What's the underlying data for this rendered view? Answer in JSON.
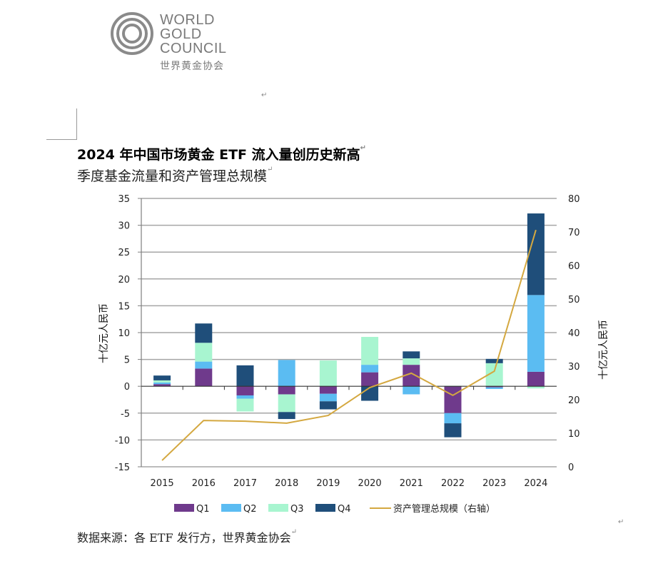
{
  "logo": {
    "lines": [
      "WORLD",
      "GOLD",
      "COUNCIL"
    ],
    "chinese": "世界黄金协会",
    "icon": "concentric-rings-icon"
  },
  "title": "2024 年中国市场黄金 ETF 流入量创历史新高",
  "subtitle": "季度基金流量和资产管理总规模",
  "source": "数据来源：各 ETF 发行方，世界黄金协会",
  "paragraph_mark": "↵",
  "colors": {
    "Q1": "#6f3a8c",
    "Q2": "#5bbcf2",
    "Q3": "#a8f5d0",
    "Q4": "#1f4e7a",
    "aum": "#d4a840",
    "grid": "#a6a6a6",
    "axis": "#7f7f7f"
  },
  "chart_data": {
    "type": "bar",
    "stacked": true,
    "title": "季度基金流量和资产管理总规模",
    "categories": [
      "2015",
      "2016",
      "2017",
      "2018",
      "2019",
      "2020",
      "2021",
      "2022",
      "2023",
      "2024"
    ],
    "series": [
      {
        "name": "Q1",
        "type": "bar",
        "axis": "left",
        "values": [
          0.4,
          3.3,
          -1.7,
          -1.5,
          -1.4,
          2.6,
          4.0,
          -5.0,
          -0.2,
          2.7
        ]
      },
      {
        "name": "Q2",
        "type": "bar",
        "axis": "left",
        "values": [
          0.3,
          1.3,
          -0.6,
          4.9,
          -1.4,
          1.4,
          -1.5,
          -1.9,
          -0.3,
          14.3
        ]
      },
      {
        "name": "Q3",
        "type": "bar",
        "axis": "left",
        "values": [
          0.4,
          3.5,
          -2.4,
          -3.3,
          4.8,
          5.2,
          1.2,
          0.1,
          4.3,
          -0.4
        ]
      },
      {
        "name": "Q4",
        "type": "bar",
        "axis": "left",
        "values": [
          0.9,
          3.6,
          3.9,
          -1.3,
          -1.5,
          -2.7,
          1.3,
          -2.6,
          0.8,
          15.2
        ]
      },
      {
        "name": "资产管理总规模（右轴）",
        "type": "line",
        "axis": "right",
        "values": [
          1.9,
          13.8,
          13.6,
          13.0,
          15.3,
          23.6,
          27.9,
          21.3,
          28.5,
          70.6
        ]
      }
    ],
    "ylabel": "十亿元人民币",
    "y2label": "十亿元人民币",
    "ylim": [
      -15,
      35
    ],
    "y2lim": [
      0,
      80
    ],
    "yticks": [
      "35",
      "30",
      "25",
      "20",
      "15",
      "10",
      "5",
      "0",
      "-5",
      "-10",
      "-15"
    ],
    "y2ticks": [
      "80",
      "70",
      "60",
      "50",
      "40",
      "30",
      "20",
      "10",
      "0"
    ],
    "grid": true,
    "legend": {
      "placement": "bottom",
      "entries": [
        "Q1",
        "Q2",
        "Q3",
        "Q4",
        "资产管理总规模（右轴）"
      ]
    }
  }
}
